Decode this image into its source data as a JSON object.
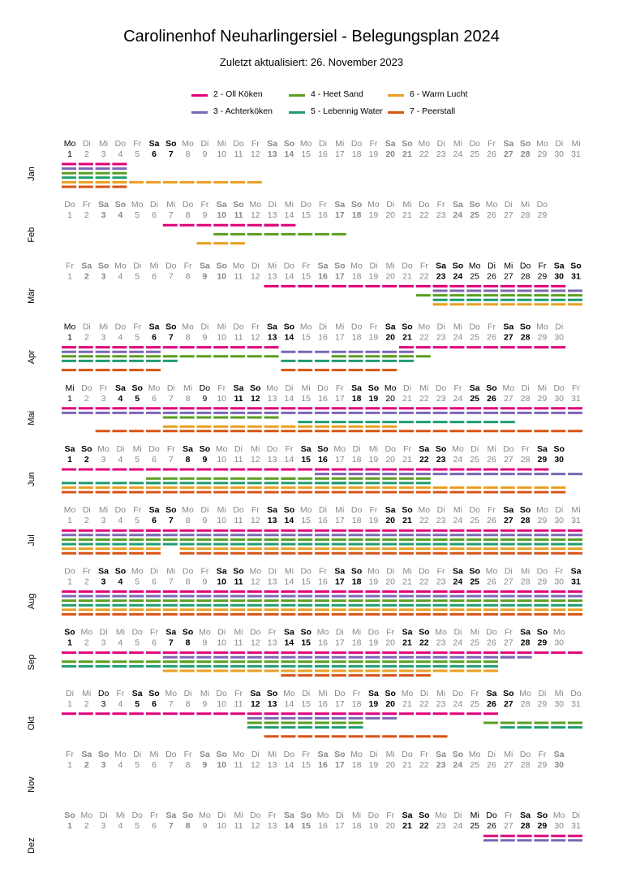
{
  "title": "Carolinenhof Neuharlingersiel - Belegungsplan 2024",
  "subtitle": "Zuletzt aktualisiert: 26. November 2023",
  "legend": [
    {
      "label": "2 - Oll Köken",
      "color": "#e0007a"
    },
    {
      "label": "3 - Achterköken",
      "color": "#7b68b5"
    },
    {
      "label": "4 - Heet Sand",
      "color": "#5a9e20"
    },
    {
      "label": "5 - Lebennig Water",
      "color": "#1f9d70"
    },
    {
      "label": "6 - Warm Lucht",
      "color": "#e8a020"
    },
    {
      "label": "7 - Peerstall",
      "color": "#d95313"
    }
  ],
  "chart_data": {
    "type": "gantt",
    "year": 2024,
    "month_labels": [
      "Jan",
      "Feb",
      "Mär",
      "Apr",
      "Mai",
      "Jun",
      "Jul",
      "Aug",
      "Sep",
      "Okt",
      "Nov",
      "Dez"
    ],
    "month_lengths": [
      31,
      29,
      31,
      30,
      31,
      30,
      31,
      31,
      30,
      31,
      30,
      31
    ],
    "weekday_abbr": [
      "So",
      "Mo",
      "Di",
      "Mi",
      "Do",
      "Fr",
      "Sa"
    ],
    "series": [
      "2 - Oll Köken",
      "3 - Achterköken",
      "4 - Heet Sand",
      "5 - Lebennig Water",
      "6 - Warm Lucht",
      "7 - Peerstall"
    ],
    "highlighted_days": [
      [
        1,
        6,
        7
      ],
      [],
      [
        23,
        24,
        25,
        26,
        27,
        28,
        29,
        30,
        31
      ],
      [
        1,
        6,
        7,
        13,
        14,
        20,
        21,
        27,
        28
      ],
      [
        1,
        4,
        5,
        9,
        11,
        12,
        18,
        19,
        20,
        25,
        26
      ],
      [
        1,
        2,
        8,
        9,
        15,
        16,
        22,
        23,
        29,
        30
      ],
      [
        6,
        7,
        13,
        14,
        20,
        21,
        27,
        28
      ],
      [
        3,
        4,
        10,
        11,
        17,
        18,
        24,
        25,
        31
      ],
      [
        1,
        7,
        8,
        14,
        15,
        21,
        22,
        28,
        29
      ],
      [
        3,
        5,
        6,
        12,
        13,
        19,
        20,
        26,
        27
      ],
      [],
      [
        21,
        22,
        25,
        26,
        28,
        29
      ]
    ],
    "bookings": [
      [
        [
          0,
          1,
          4
        ],
        [
          1,
          1,
          4
        ],
        [
          2,
          1,
          4
        ],
        [
          3,
          1,
          4
        ],
        [
          4,
          1,
          7
        ],
        [
          4,
          8,
          12
        ],
        [
          5,
          1,
          4
        ]
      ],
      [
        [
          0,
          7,
          13
        ],
        [
          0,
          13,
          14
        ],
        [
          2,
          10,
          17
        ],
        [
          4,
          9,
          11
        ]
      ],
      [
        [
          0,
          13,
          23
        ],
        [
          0,
          23,
          30
        ],
        [
          1,
          23,
          31
        ],
        [
          2,
          22,
          31
        ],
        [
          3,
          23,
          31
        ],
        [
          4,
          23,
          31
        ]
      ],
      [
        [
          0,
          1,
          13
        ],
        [
          0,
          21,
          30
        ],
        [
          1,
          1,
          6
        ],
        [
          1,
          14,
          21
        ],
        [
          2,
          1,
          6
        ],
        [
          2,
          7,
          13
        ],
        [
          2,
          17,
          20
        ],
        [
          2,
          20,
          22
        ],
        [
          3,
          1,
          7
        ],
        [
          3,
          14,
          21
        ],
        [
          5,
          1,
          6
        ],
        [
          5,
          14,
          20
        ]
      ],
      [
        [
          0,
          1,
          31
        ],
        [
          1,
          1,
          31
        ],
        [
          2,
          7,
          13
        ],
        [
          3,
          15,
          27
        ],
        [
          4,
          7,
          20
        ],
        [
          5,
          3,
          31
        ]
      ],
      [
        [
          0,
          1,
          6
        ],
        [
          0,
          7,
          29
        ],
        [
          1,
          16,
          31
        ],
        [
          2,
          6,
          14
        ],
        [
          2,
          14,
          22
        ],
        [
          3,
          1,
          6
        ],
        [
          3,
          6,
          17
        ],
        [
          3,
          17,
          22
        ],
        [
          4,
          1,
          30
        ],
        [
          5,
          1,
          30
        ]
      ],
      [
        [
          0,
          1,
          6
        ],
        [
          0,
          6,
          31
        ],
        [
          1,
          1,
          6
        ],
        [
          1,
          6,
          31
        ],
        [
          2,
          1,
          31
        ],
        [
          3,
          1,
          31
        ],
        [
          4,
          1,
          6
        ],
        [
          4,
          8,
          31
        ],
        [
          5,
          1,
          6
        ],
        [
          5,
          8,
          31
        ]
      ],
      [
        [
          0,
          1,
          24
        ],
        [
          0,
          24,
          31
        ],
        [
          1,
          1,
          21
        ],
        [
          1,
          21,
          31
        ],
        [
          2,
          1,
          31
        ],
        [
          3,
          1,
          31
        ],
        [
          4,
          1,
          31
        ],
        [
          5,
          1,
          31
        ]
      ],
      [
        [
          0,
          1,
          28
        ],
        [
          0,
          29,
          31
        ],
        [
          1,
          7,
          27
        ],
        [
          1,
          27,
          28
        ],
        [
          2,
          1,
          8
        ],
        [
          2,
          8,
          26
        ],
        [
          3,
          1,
          8
        ],
        [
          3,
          8,
          26
        ],
        [
          4,
          7,
          26
        ],
        [
          5,
          14,
          22
        ]
      ],
      [
        [
          0,
          1,
          26
        ],
        [
          1,
          12,
          20
        ],
        [
          2,
          12,
          18
        ],
        [
          2,
          26,
          31
        ],
        [
          3,
          12,
          18
        ],
        [
          3,
          27,
          31
        ],
        [
          5,
          13,
          23
        ]
      ],
      [],
      [
        [
          0,
          26,
          31
        ],
        [
          1,
          26,
          31
        ]
      ]
    ]
  }
}
